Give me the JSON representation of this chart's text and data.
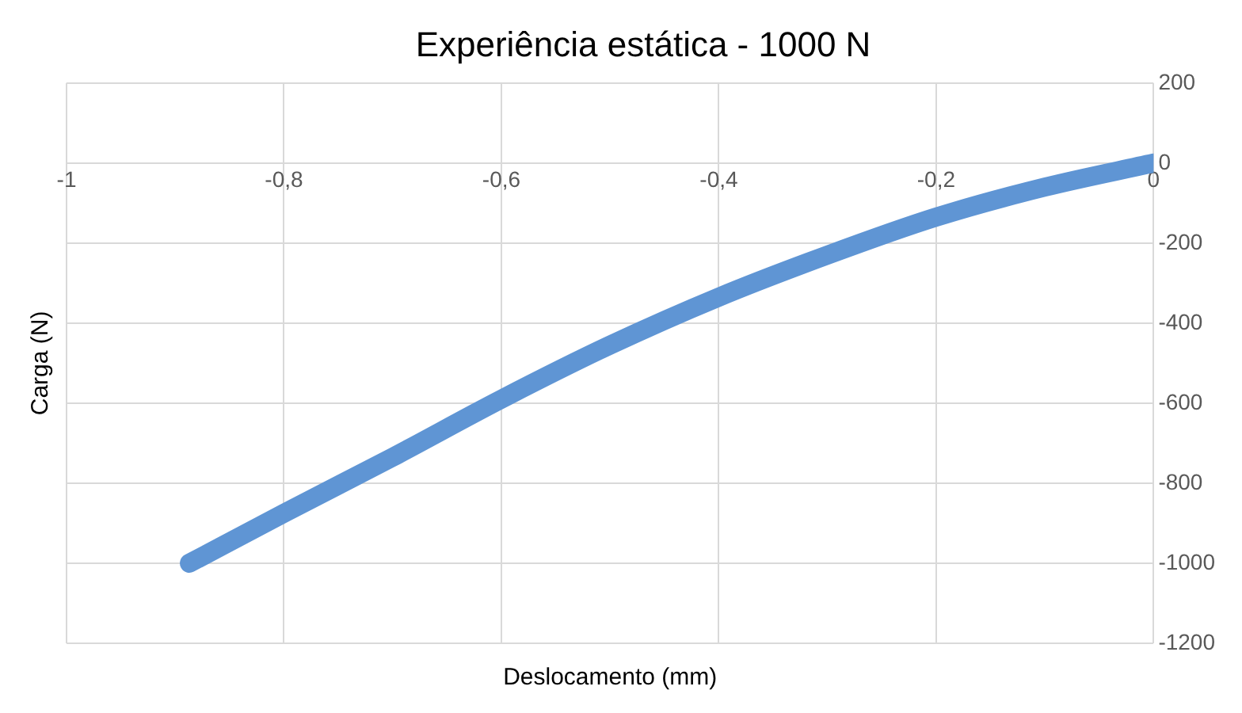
{
  "chart_data": {
    "type": "line",
    "title": "Experiência estática - 1000 N",
    "xlabel": "Deslocamento (mm)",
    "ylabel": "Carga (N)",
    "x": [
      -0.887,
      -0.8,
      -0.7,
      -0.6,
      -0.5,
      -0.4,
      -0.3,
      -0.2,
      -0.1,
      0
    ],
    "series": [
      {
        "color": "#5f95d4",
        "values": [
          -1000,
          -875,
          -735,
          -590,
          -455,
          -335,
          -230,
          -135,
          -60,
          0
        ]
      }
    ],
    "xlim": [
      -1,
      0
    ],
    "xticks": [
      -1,
      {
        "value": -0.8,
        "label": "-0,8"
      },
      {
        "value": -0.6,
        "label": "-0,6"
      },
      {
        "value": -0.4,
        "label": "-0,4"
      },
      {
        "value": -0.2,
        "label": "-0,2"
      },
      0
    ],
    "ylim": [
      -1200,
      200
    ],
    "yticks": [
      -1200,
      -1000,
      -800,
      -600,
      -400,
      -200,
      0,
      200
    ],
    "grid": true,
    "legend": false,
    "marker": "none",
    "line_style": "solid"
  }
}
